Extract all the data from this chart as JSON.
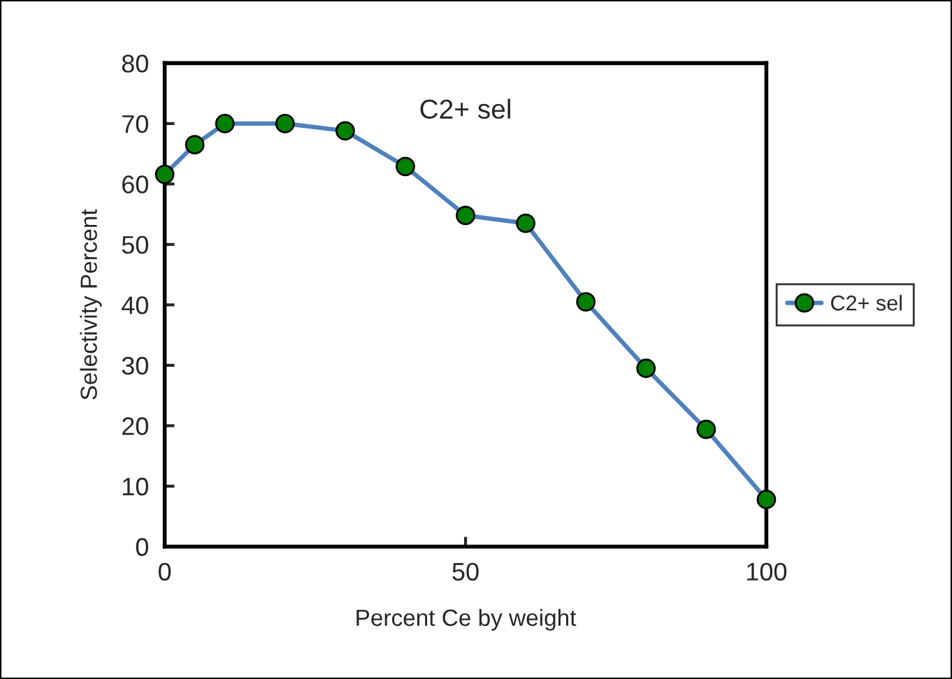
{
  "chart_data": {
    "type": "line",
    "title": "C2+ sel",
    "xlabel": "Percent Ce by weight",
    "ylabel": "Selectivity Percent",
    "x": [
      0,
      5,
      10,
      20,
      30,
      40,
      50,
      60,
      70,
      80,
      90,
      100
    ],
    "series": [
      {
        "name": "C2+ sel",
        "color": "#4f81bd",
        "colors": [
          "#008000",
          "#008000",
          "#008000",
          "#008000",
          "#008000",
          "#008000",
          "#008000",
          "#008000",
          "#008000",
          "#008000",
          "#008000",
          "#008000"
        ],
        "values": [
          61.6,
          66.5,
          70,
          70,
          68.8,
          62.9,
          54.8,
          53.5,
          40.5,
          29.5,
          19.4,
          7.8
        ]
      }
    ],
    "xlim": [
      0,
      100
    ],
    "xticks": [
      0,
      50,
      100
    ],
    "ylim": [
      0,
      80
    ],
    "yticks": [
      0,
      10,
      20,
      30,
      40,
      50,
      60,
      70,
      80
    ],
    "marker": "circle",
    "line_style": "solid",
    "grid": false,
    "legend": "right"
  }
}
